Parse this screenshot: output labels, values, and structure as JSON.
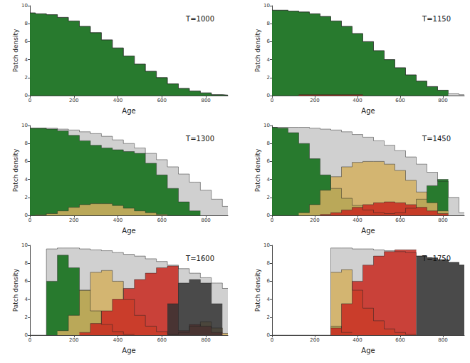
{
  "chart_data": [
    {
      "type": "area",
      "title": "T=1000",
      "x_label": "Age",
      "y_label": "Patch density",
      "x": [
        0,
        50,
        100,
        150,
        200,
        250,
        300,
        350,
        400,
        450,
        500,
        550,
        600,
        650,
        700,
        750,
        800,
        850,
        900
      ],
      "xlim": [
        0,
        900
      ],
      "xticks": [
        0,
        200,
        400,
        600,
        800
      ],
      "ylim": [
        0,
        10
      ],
      "yticks": [
        0,
        2,
        4,
        6,
        8,
        10
      ],
      "grid": false,
      "series": [
        {
          "color": "#c8c8c8",
          "values": [
            9.2,
            9.1,
            9.0,
            8.7,
            8.3,
            7.7,
            7.0,
            6.2,
            5.3,
            4.4,
            3.5,
            2.7,
            2.0,
            1.3,
            0.8,
            0.5,
            0.3,
            0.1,
            0.05
          ]
        },
        {
          "color": "#0a6b12",
          "values": [
            9.2,
            9.1,
            9.0,
            8.7,
            8.3,
            7.7,
            7.0,
            6.2,
            5.3,
            4.4,
            3.5,
            2.7,
            2.0,
            1.3,
            0.8,
            0.5,
            0.3,
            0.1,
            0.05
          ]
        }
      ]
    },
    {
      "type": "area",
      "title": "T=1150",
      "x_label": "Age",
      "y_label": "Patch density",
      "x": [
        0,
        50,
        100,
        150,
        200,
        250,
        300,
        350,
        400,
        450,
        500,
        550,
        600,
        650,
        700,
        750,
        800,
        850,
        900
      ],
      "xlim": [
        0,
        900
      ],
      "xticks": [
        0,
        200,
        400,
        600,
        800
      ],
      "ylim": [
        0,
        10
      ],
      "yticks": [
        0,
        2,
        4,
        6,
        8,
        10
      ],
      "grid": false,
      "series": [
        {
          "color": "#c8c8c8",
          "values": [
            9.5,
            9.5,
            9.4,
            9.3,
            9.1,
            8.8,
            8.3,
            7.7,
            6.9,
            6.0,
            5.0,
            4.0,
            3.1,
            2.3,
            1.6,
            1.0,
            0.6,
            0.2,
            0.1
          ]
        },
        {
          "color": "#0a6b12",
          "values": [
            9.5,
            9.5,
            9.4,
            9.3,
            9.1,
            8.8,
            8.3,
            7.7,
            6.9,
            6.0,
            5.0,
            4.0,
            3.1,
            2.3,
            1.6,
            1.0,
            0.6,
            null,
            null
          ]
        },
        {
          "color": "#c8281e",
          "values": [
            null,
            null,
            null,
            0.1,
            0.1,
            0.1,
            0.1,
            0.1,
            0.1,
            null,
            null,
            null,
            null,
            null,
            null,
            null,
            null,
            null,
            null
          ]
        }
      ]
    },
    {
      "type": "area",
      "title": "T=1300",
      "x_label": "Age",
      "y_label": "Patch density",
      "x": [
        0,
        50,
        100,
        150,
        200,
        250,
        300,
        350,
        400,
        450,
        500,
        550,
        600,
        650,
        700,
        750,
        800,
        850,
        900
      ],
      "xlim": [
        0,
        900
      ],
      "xticks": [
        0,
        200,
        400,
        600,
        800
      ],
      "ylim": [
        0,
        10
      ],
      "yticks": [
        0,
        2,
        4,
        6,
        8,
        10
      ],
      "grid": false,
      "series": [
        {
          "color": "#c8c8c8",
          "values": [
            9.7,
            9.7,
            9.7,
            9.6,
            9.5,
            9.3,
            9.1,
            8.8,
            8.4,
            8.0,
            7.5,
            6.9,
            6.2,
            5.4,
            4.6,
            3.7,
            2.8,
            1.8,
            1.0
          ]
        },
        {
          "color": "#0a6b12",
          "values": [
            9.7,
            9.7,
            9.6,
            9.4,
            8.9,
            8.3,
            7.8,
            7.5,
            7.3,
            7.1,
            6.9,
            5.8,
            4.5,
            3.0,
            1.5,
            0.5,
            null,
            null,
            null
          ]
        },
        {
          "color": "#d4b060",
          "values": [
            null,
            0.05,
            0.2,
            0.5,
            0.9,
            1.2,
            1.3,
            1.3,
            1.1,
            0.8,
            0.5,
            0.3,
            0.1,
            null,
            null,
            null,
            null,
            null,
            null
          ]
        }
      ]
    },
    {
      "type": "area",
      "title": "T=1450",
      "x_label": "Age",
      "y_label": "Patch density",
      "x": [
        0,
        50,
        100,
        150,
        200,
        250,
        300,
        350,
        400,
        450,
        500,
        550,
        600,
        650,
        700,
        750,
        800,
        850,
        900
      ],
      "xlim": [
        0,
        900
      ],
      "xticks": [
        0,
        200,
        400,
        600,
        800
      ],
      "ylim": [
        0,
        10
      ],
      "yticks": [
        0,
        2,
        4,
        6,
        8,
        10
      ],
      "grid": false,
      "series": [
        {
          "color": "#c8c8c8",
          "values": [
            9.8,
            9.8,
            9.8,
            9.8,
            9.7,
            9.6,
            9.5,
            9.3,
            9.0,
            8.7,
            8.3,
            7.8,
            7.2,
            6.5,
            5.7,
            4.8,
            3.8,
            2.0,
            0.3
          ]
        },
        {
          "color": "#0a6b12",
          "values": [
            9.8,
            9.7,
            9.2,
            8.0,
            6.3,
            4.5,
            3.0,
            1.9,
            1.1,
            0.6,
            0.3,
            0.2,
            0.3,
            0.8,
            1.8,
            3.3,
            4.0,
            null,
            null
          ]
        },
        {
          "color": "#d4b060",
          "values": [
            null,
            null,
            null,
            0.3,
            1.2,
            2.8,
            4.3,
            5.4,
            5.9,
            6.0,
            6.0,
            5.7,
            5.0,
            3.9,
            2.6,
            1.4,
            0.5,
            null,
            null
          ]
        },
        {
          "color": "#c8281e",
          "values": [
            null,
            null,
            null,
            null,
            null,
            0.1,
            0.3,
            0.6,
            0.9,
            1.2,
            1.4,
            1.5,
            1.4,
            1.2,
            0.9,
            0.5,
            0.2,
            null,
            null
          ]
        }
      ]
    },
    {
      "type": "area",
      "title": "T=1600",
      "x_label": "Age",
      "y_label": "Patch density",
      "x": [
        0,
        50,
        100,
        150,
        200,
        250,
        300,
        350,
        400,
        450,
        500,
        550,
        600,
        650,
        700,
        750,
        800,
        850,
        900
      ],
      "xlim": [
        0,
        900
      ],
      "xticks": [
        0,
        200,
        400,
        600,
        800
      ],
      "ylim": [
        0,
        10
      ],
      "yticks": [
        0,
        2,
        4,
        6,
        8,
        10
      ],
      "grid": false,
      "series": [
        {
          "color": "#c8c8c8",
          "values": [
            0,
            0,
            9.6,
            9.7,
            9.7,
            9.6,
            9.5,
            9.4,
            9.2,
            9.0,
            8.8,
            8.5,
            8.2,
            7.8,
            7.4,
            6.9,
            6.4,
            5.8,
            5.2
          ]
        },
        {
          "color": "#0a6b12",
          "values": [
            null,
            null,
            6.0,
            8.9,
            7.5,
            5.0,
            2.7,
            1.2,
            0.4,
            0.1,
            null,
            null,
            null,
            null,
            null,
            null,
            null,
            null,
            null
          ]
        },
        {
          "color": "#d4b060",
          "values": [
            null,
            null,
            null,
            0.5,
            2.2,
            5.0,
            7.0,
            7.2,
            6.0,
            4.0,
            2.2,
            1.0,
            0.4,
            0.1,
            0.3,
            1.0,
            1.5,
            0.8,
            0.2
          ]
        },
        {
          "color": "#c8281e",
          "values": [
            null,
            null,
            null,
            null,
            null,
            0.3,
            1.3,
            2.7,
            4.0,
            5.2,
            6.2,
            6.9,
            7.5,
            7.7,
            0.5,
            1.2,
            1.0,
            0.3,
            null
          ]
        },
        {
          "color": "#333333",
          "values": [
            null,
            null,
            null,
            null,
            null,
            null,
            null,
            null,
            null,
            null,
            null,
            null,
            null,
            3.5,
            5.8,
            6.2,
            5.8,
            3.5,
            null
          ]
        }
      ]
    },
    {
      "type": "area",
      "title": "T=1750",
      "x_label": "Age",
      "y_label": "Patch density",
      "x": [
        0,
        50,
        100,
        150,
        200,
        250,
        300,
        350,
        400,
        450,
        500,
        550,
        600,
        650,
        700,
        750,
        800,
        850,
        900
      ],
      "xlim": [
        0,
        900
      ],
      "xticks": [
        0,
        200,
        400,
        600,
        800
      ],
      "ylim": [
        0,
        10
      ],
      "yticks": [
        0,
        2,
        4,
        6,
        8,
        10
      ],
      "grid": false,
      "series": [
        {
          "color": "#c8c8c8",
          "values": [
            0,
            0,
            0,
            0,
            0,
            0,
            9.7,
            9.7,
            9.6,
            9.6,
            9.5,
            9.4,
            9.3,
            9.2,
            8.8,
            8.6,
            8.4,
            8.1,
            7.8
          ]
        },
        {
          "color": "#0a6b12",
          "values": [
            null,
            null,
            null,
            null,
            null,
            null,
            1.0,
            0.3,
            null,
            null,
            null,
            null,
            null,
            null,
            null,
            null,
            null,
            null,
            null
          ]
        },
        {
          "color": "#d4b060",
          "values": [
            null,
            null,
            null,
            null,
            null,
            null,
            7.0,
            7.3,
            5.0,
            3.0,
            1.6,
            0.7,
            0.3,
            0.1,
            null,
            null,
            null,
            null,
            null
          ]
        },
        {
          "color": "#c8281e",
          "values": [
            null,
            null,
            null,
            null,
            null,
            null,
            0.8,
            3.5,
            6.0,
            7.8,
            8.8,
            9.3,
            9.5,
            9.5,
            null,
            null,
            null,
            null,
            null
          ]
        },
        {
          "color": "#333333",
          "values": [
            null,
            null,
            null,
            null,
            null,
            null,
            null,
            null,
            null,
            null,
            null,
            null,
            null,
            null,
            8.8,
            8.6,
            8.4,
            8.1,
            7.8
          ]
        }
      ]
    }
  ]
}
